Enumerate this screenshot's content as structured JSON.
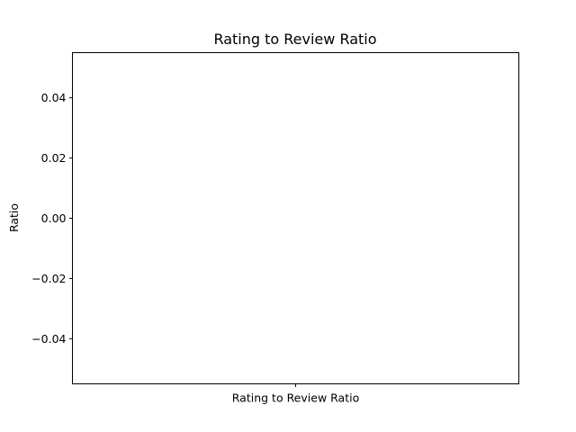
{
  "chart_data": {
    "type": "box",
    "title": "Rating to Review Ratio",
    "xlabel": "",
    "ylabel": "Ratio",
    "categories": [
      "Rating to Review Ratio"
    ],
    "series": [
      {
        "values": []
      }
    ],
    "ylim": [
      -0.055,
      0.055
    ],
    "yticks": [
      -0.04,
      -0.02,
      0.0,
      0.02,
      0.04
    ],
    "ytick_labels": [
      "−0.04",
      "−0.02",
      "0.00",
      "0.02",
      "0.04"
    ],
    "grid": false,
    "legend": "none"
  }
}
